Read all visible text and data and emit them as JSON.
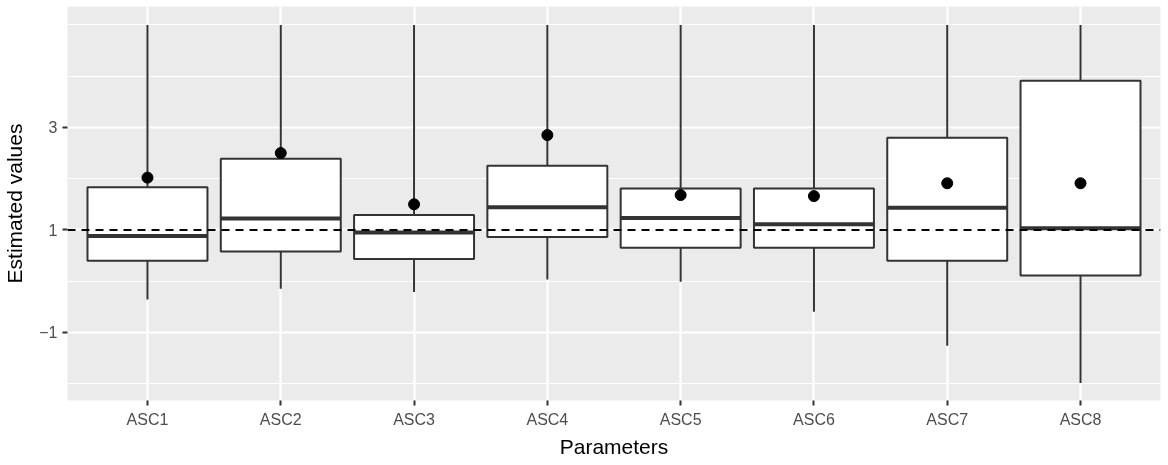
{
  "chart_data": {
    "type": "box",
    "xlabel": "Parameters",
    "ylabel": "Estimated values",
    "categories": [
      "ASC1",
      "ASC2",
      "ASC3",
      "ASC4",
      "ASC5",
      "ASC6",
      "ASC7",
      "ASC8"
    ],
    "boxes": [
      {
        "low": -0.36,
        "q1": 0.4,
        "median": 0.88,
        "q3": 1.83,
        "high": 5,
        "mean": 2.02
      },
      {
        "low": -0.15,
        "q1": 0.58,
        "median": 1.22,
        "q3": 2.39,
        "high": 5,
        "mean": 2.5
      },
      {
        "low": -0.21,
        "q1": 0.43,
        "median": 0.95,
        "q3": 1.29,
        "high": 5,
        "mean": 1.5
      },
      {
        "low": 0.03,
        "q1": 0.86,
        "median": 1.44,
        "q3": 2.25,
        "high": 5,
        "mean": 2.85
      },
      {
        "low": -0.01,
        "q1": 0.65,
        "median": 1.23,
        "q3": 1.81,
        "high": 5,
        "mean": 1.68
      },
      {
        "low": -0.6,
        "q1": 0.65,
        "median": 1.11,
        "q3": 1.81,
        "high": 5,
        "mean": 1.66
      },
      {
        "low": -1.26,
        "q1": 0.4,
        "median": 1.43,
        "q3": 2.8,
        "high": 5,
        "mean": 1.91
      },
      {
        "low": -1.99,
        "q1": 0.11,
        "median": 1.03,
        "q3": 3.91,
        "high": 5,
        "mean": 1.91
      }
    ],
    "ylim": [
      -2.33,
      5.36
    ],
    "yticks": [
      -1,
      1,
      3
    ],
    "grid": true,
    "ref_lines": [
      {
        "axis": "y",
        "value": 1,
        "line_style": "dashed",
        "color": "#000000"
      }
    ]
  }
}
